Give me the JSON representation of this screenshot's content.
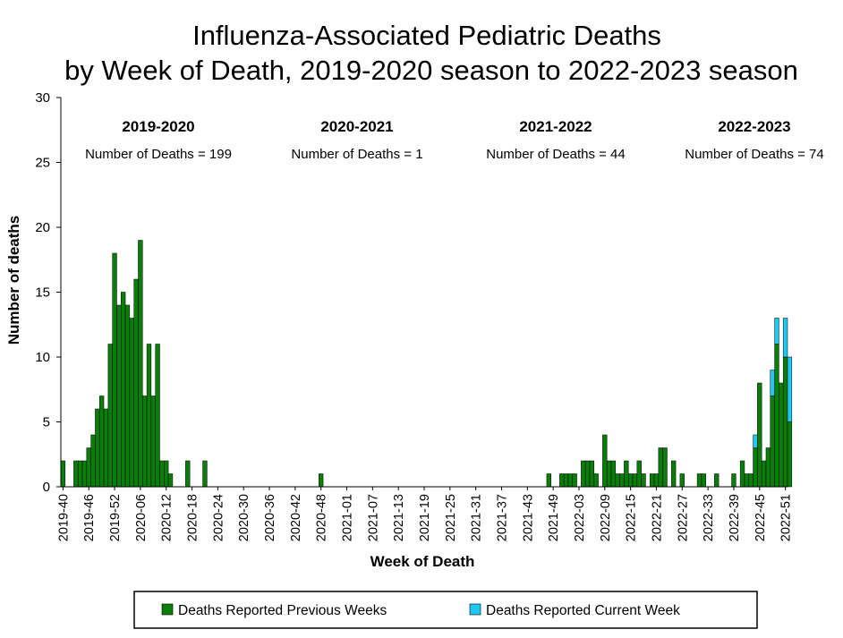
{
  "chart_data": {
    "type": "bar",
    "stacked": true,
    "title_lines": [
      "Influenza-Associated Pediatric Deaths",
      "by Week of Death, 2019-2020 season to 2022-2023 season"
    ],
    "xlabel": "Week of Death",
    "ylabel": "Number of deaths",
    "ylim": [
      0,
      30
    ],
    "yticks": [
      0,
      5,
      10,
      15,
      20,
      25,
      30
    ],
    "grid": false,
    "legend_position": "bottom",
    "week_count": 169,
    "x_tick_labels": [
      "2019-40",
      "2019-46",
      "2019-52",
      "2020-06",
      "2020-12",
      "2020-18",
      "2020-24",
      "2020-30",
      "2020-36",
      "2020-42",
      "2020-48",
      "2021-01",
      "2021-07",
      "2021-13",
      "2021-19",
      "2021-25",
      "2021-31",
      "2021-37",
      "2021-43",
      "2021-49",
      "2022-03",
      "2022-09",
      "2022-15",
      "2022-21",
      "2022-27",
      "2022-33",
      "2022-39",
      "2022-45",
      "2022-51"
    ],
    "seasons": [
      {
        "label": "2019-2020",
        "count_text": "Number of Deaths = 199"
      },
      {
        "label": "2020-2021",
        "count_text": "Number of Deaths = 1"
      },
      {
        "label": "2021-2022",
        "count_text": "Number of Deaths = 44"
      },
      {
        "label": "2022-2023",
        "count_text": "Number of Deaths = 74"
      }
    ],
    "series": [
      {
        "name": "Deaths Reported Previous Weeks",
        "color": "#0a7d0a",
        "points": [
          [
            "2019-40",
            2
          ],
          [
            "2019-43",
            2
          ],
          [
            "2019-44",
            2
          ],
          [
            "2019-45",
            2
          ],
          [
            "2019-46",
            3
          ],
          [
            "2019-47",
            4
          ],
          [
            "2019-48",
            6
          ],
          [
            "2019-49",
            7
          ],
          [
            "2019-50",
            6
          ],
          [
            "2019-51",
            11
          ],
          [
            "2019-52",
            18
          ],
          [
            "2020-01",
            14
          ],
          [
            "2020-02",
            15
          ],
          [
            "2020-03",
            14
          ],
          [
            "2020-04",
            13
          ],
          [
            "2020-05",
            16
          ],
          [
            "2020-06",
            19
          ],
          [
            "2020-07",
            7
          ],
          [
            "2020-08",
            11
          ],
          [
            "2020-09",
            7
          ],
          [
            "2020-10",
            11
          ],
          [
            "2020-11",
            2
          ],
          [
            "2020-12",
            2
          ],
          [
            "2020-13",
            1
          ],
          [
            "2020-17",
            2
          ],
          [
            "2020-21",
            2
          ],
          [
            "2020-48",
            1
          ],
          [
            "2021-48",
            1
          ],
          [
            "2021-51",
            1
          ],
          [
            "2021-52",
            1
          ],
          [
            "2022-01",
            1
          ],
          [
            "2022-02",
            1
          ],
          [
            "2022-04",
            2
          ],
          [
            "2022-05",
            2
          ],
          [
            "2022-06",
            2
          ],
          [
            "2022-07",
            1
          ],
          [
            "2022-09",
            4
          ],
          [
            "2022-10",
            2
          ],
          [
            "2022-11",
            2
          ],
          [
            "2022-12",
            1
          ],
          [
            "2022-13",
            1
          ],
          [
            "2022-14",
            2
          ],
          [
            "2022-15",
            1
          ],
          [
            "2022-16",
            1
          ],
          [
            "2022-17",
            2
          ],
          [
            "2022-18",
            1
          ],
          [
            "2022-20",
            1
          ],
          [
            "2022-21",
            1
          ],
          [
            "2022-22",
            3
          ],
          [
            "2022-23",
            3
          ],
          [
            "2022-25",
            2
          ],
          [
            "2022-27",
            1
          ],
          [
            "2022-31",
            1
          ],
          [
            "2022-32",
            1
          ],
          [
            "2022-35",
            1
          ],
          [
            "2022-39",
            1
          ],
          [
            "2022-41",
            2
          ],
          [
            "2022-42",
            1
          ],
          [
            "2022-43",
            1
          ],
          [
            "2022-44",
            3
          ],
          [
            "2022-45",
            8
          ],
          [
            "2022-46",
            2
          ],
          [
            "2022-47",
            3
          ],
          [
            "2022-48",
            7
          ],
          [
            "2022-49",
            11
          ],
          [
            "2022-50",
            8
          ],
          [
            "2022-51",
            10
          ],
          [
            "2022-52",
            5
          ]
        ]
      },
      {
        "name": "Deaths Reported Current Week",
        "color": "#1ec8f0",
        "points": [
          [
            "2022-44",
            1
          ],
          [
            "2022-48",
            2
          ],
          [
            "2022-49",
            2
          ],
          [
            "2022-51",
            3
          ],
          [
            "2022-52",
            5
          ]
        ]
      }
    ]
  }
}
